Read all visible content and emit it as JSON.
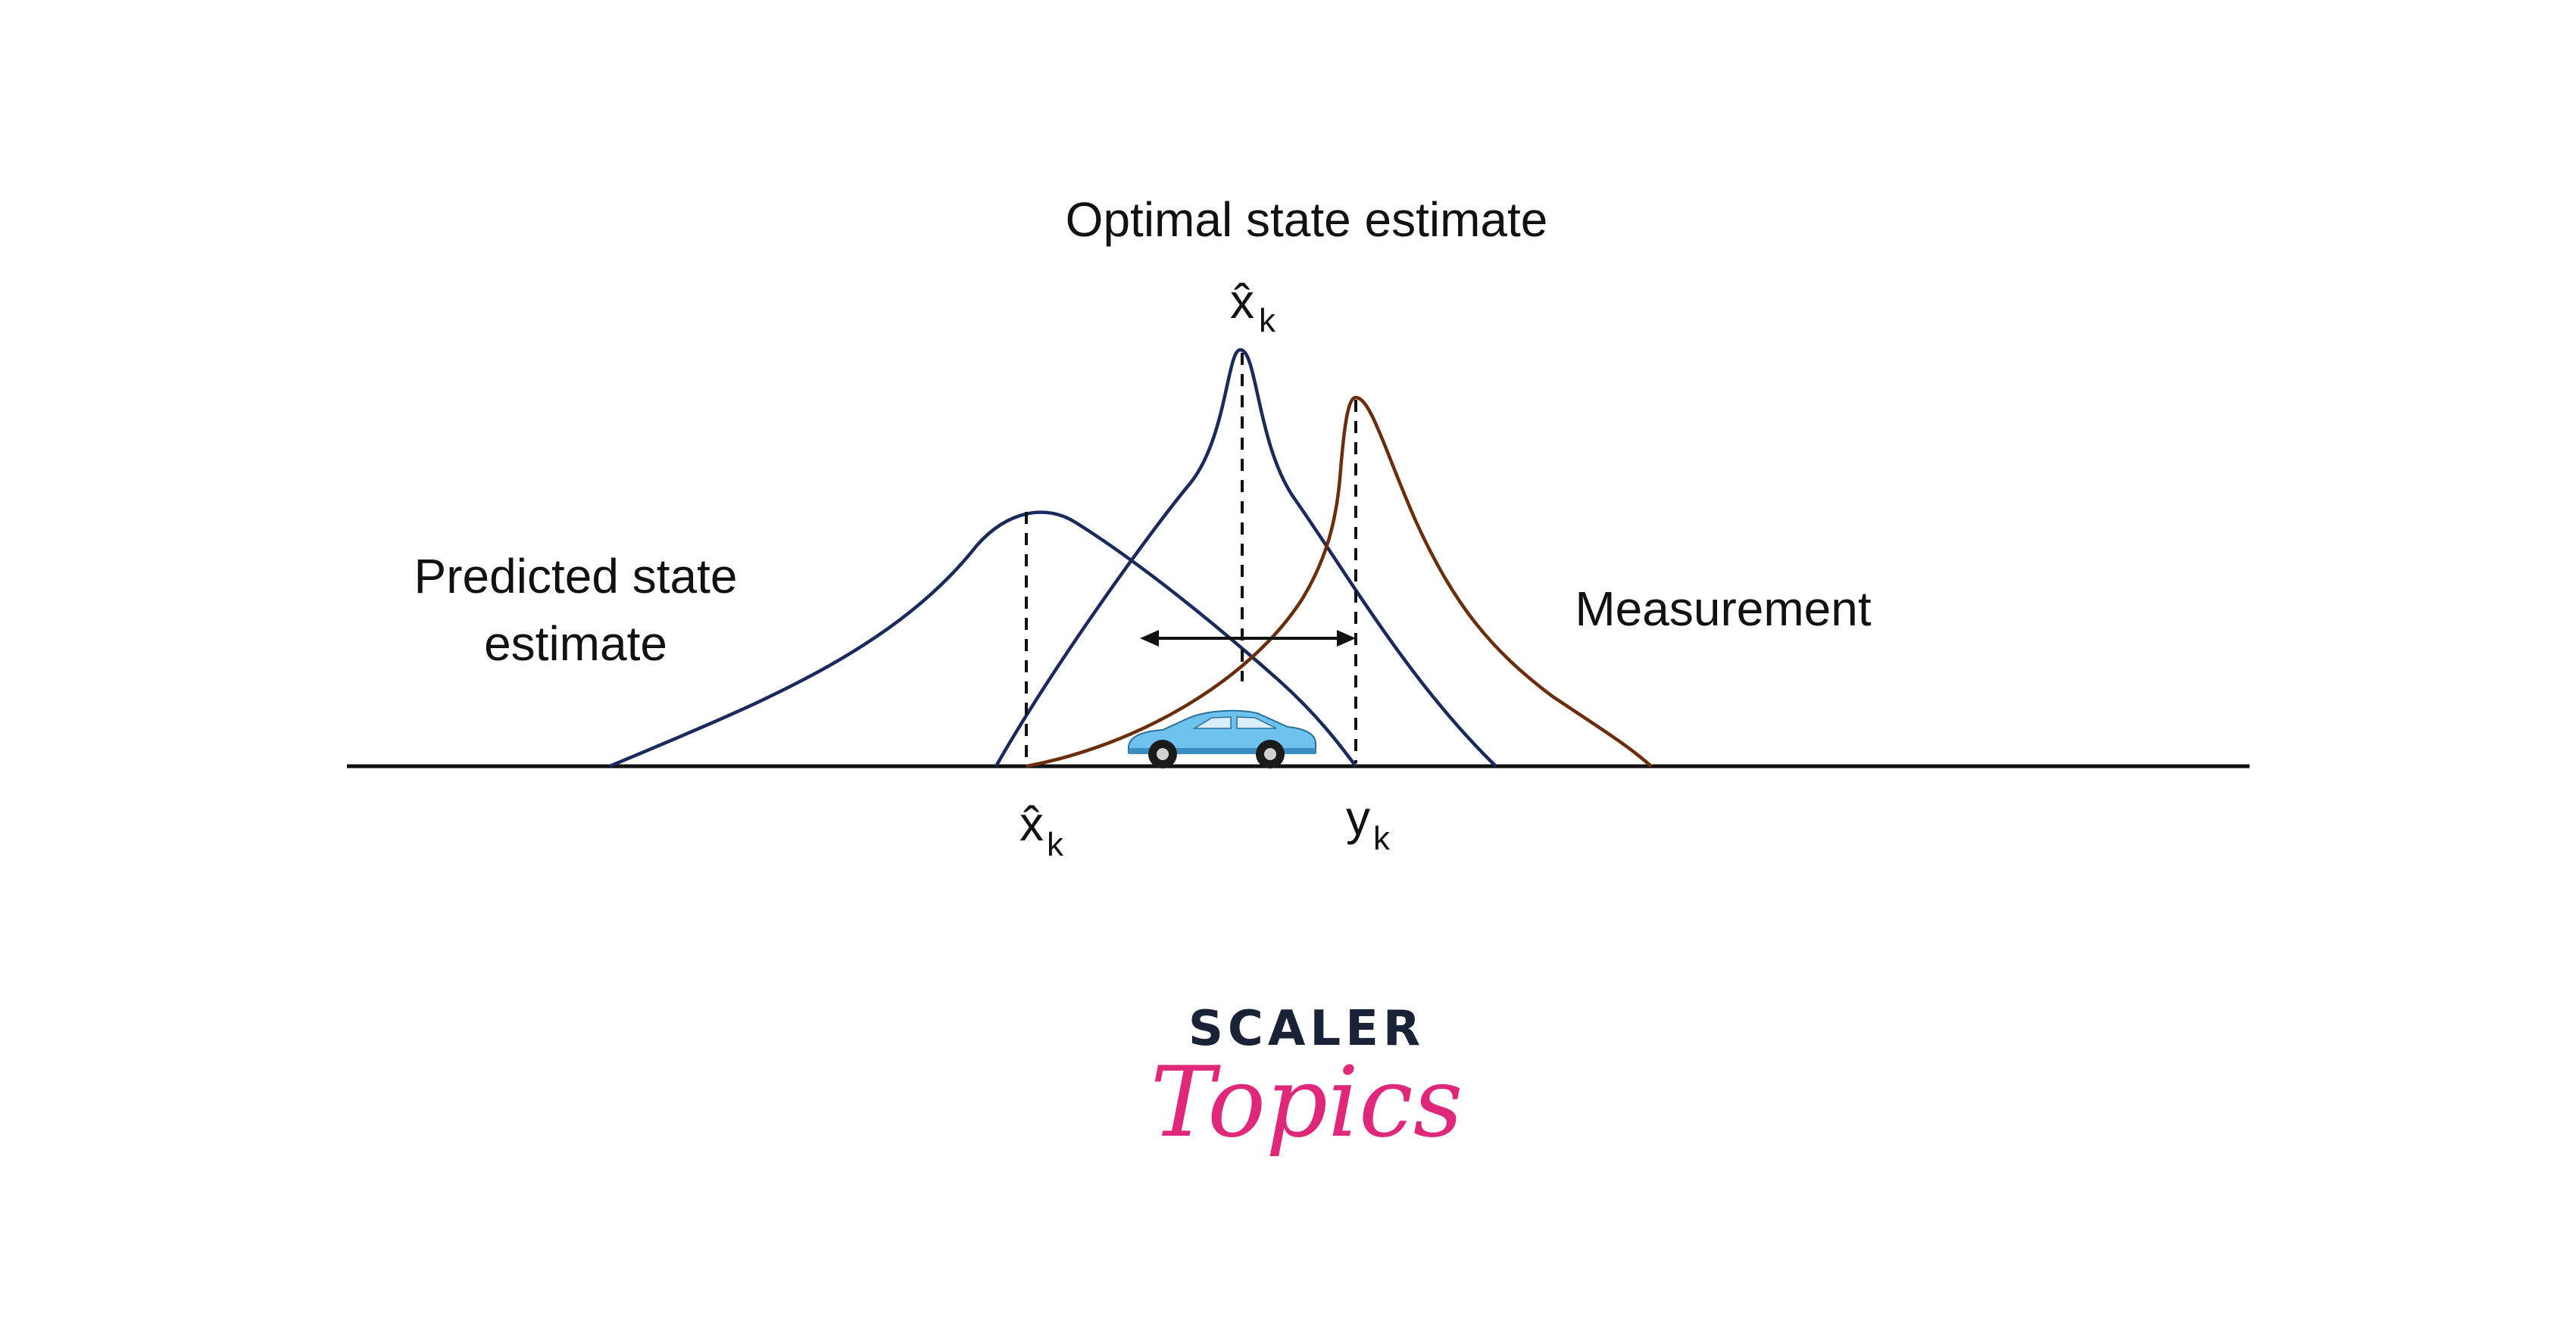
{
  "labels": {
    "optimal_title": "Optimal state estimate",
    "optimal_symbol": "x̂",
    "optimal_subscript": "k",
    "predicted_line1": "Predicted state",
    "predicted_line2": "estimate",
    "measurement": "Measurement",
    "axis_xhat_symbol": "x̂",
    "axis_xhat_subscript": "k",
    "axis_y_symbol": "y",
    "axis_y_subscript": "k"
  },
  "logo": {
    "word1": "SCALER",
    "word2": "Topics"
  },
  "colors": {
    "predicted_curve": "#1b2a5c",
    "optimal_curve": "#1b2a5c",
    "measurement_curve": "#6b2e0c",
    "axis": "#111111",
    "logo_dark": "#1a2238",
    "logo_pink": "#e0287a",
    "car_body": "#6ec3ee"
  },
  "icons": {
    "car": "car-icon"
  }
}
